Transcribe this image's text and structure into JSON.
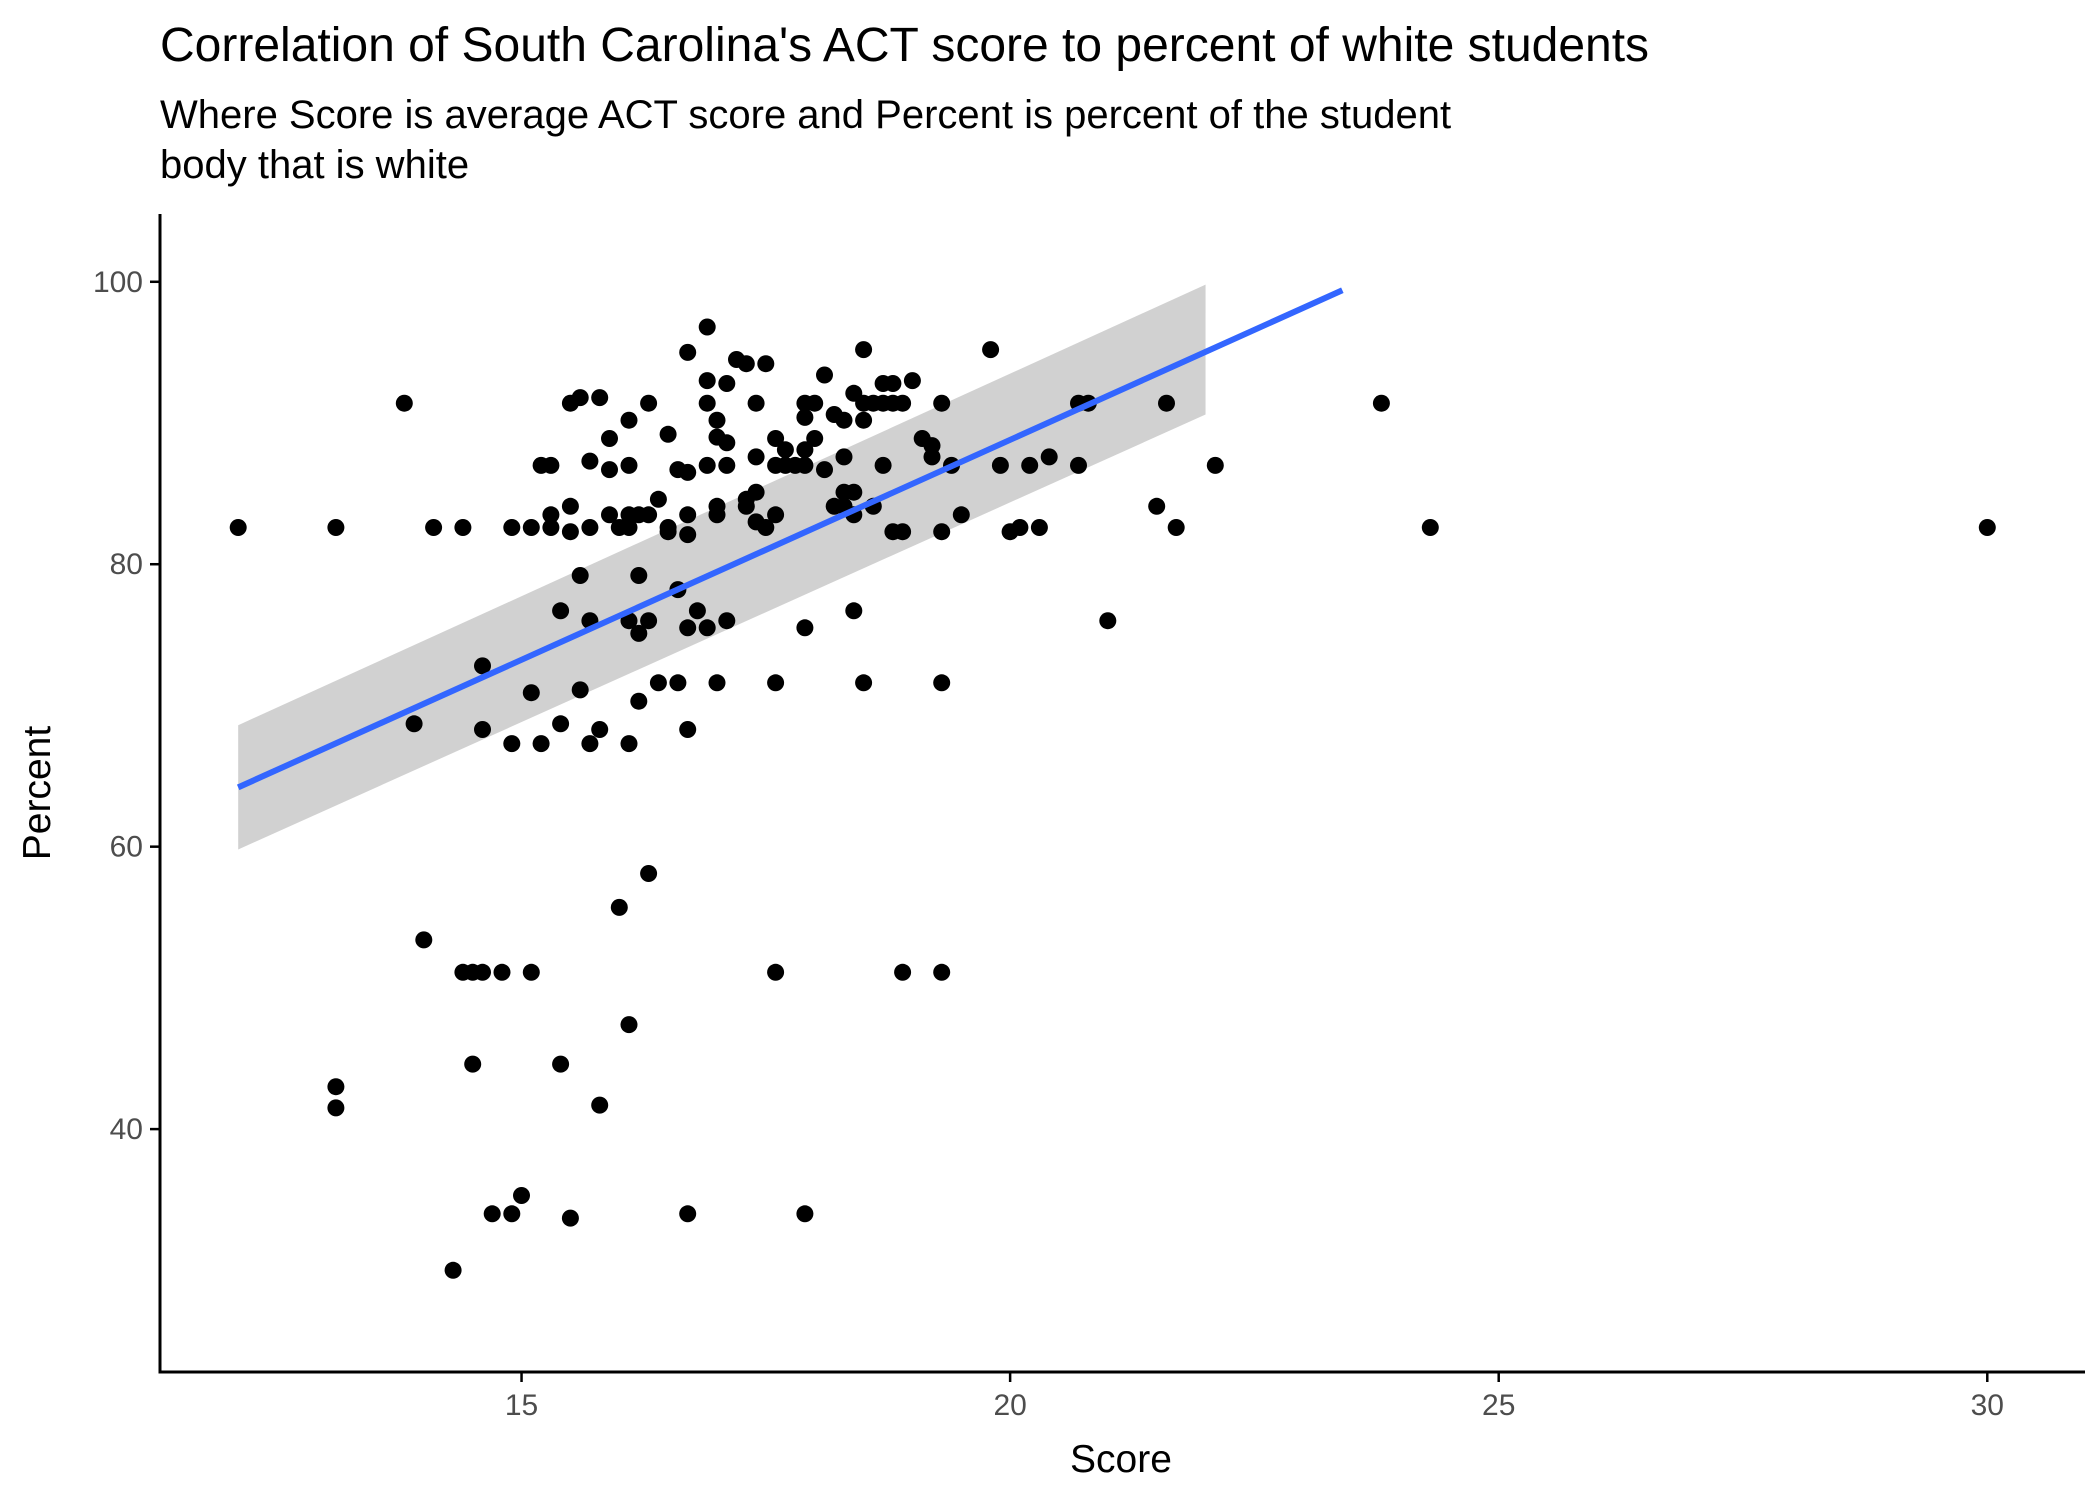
{
  "chart_data": {
    "type": "scatter",
    "title": "Correlation of South Carolina's ACT score to percent of white students",
    "subtitle": [
      "Where Score is average ACT score and Percent is percent of the student",
      "body that is white"
    ],
    "xlabel": "Score",
    "ylabel": "Percent",
    "xlim": [
      11.3,
      31.0
    ],
    "ylim": [
      22.8,
      104.8
    ],
    "x_ticks": [
      15,
      20,
      25,
      30
    ],
    "y_ticks": [
      40,
      60,
      80,
      100
    ],
    "x_tick_labels": [
      "15",
      "20",
      "25",
      "30"
    ],
    "y_tick_labels": [
      "40",
      "60",
      "80",
      "100"
    ],
    "grid": false,
    "legend": "none",
    "points": [
      [
        12.1,
        82.6
      ],
      [
        13.1,
        82.6
      ],
      [
        13.1,
        43.0
      ],
      [
        13.1,
        41.5
      ],
      [
        13.8,
        91.4
      ],
      [
        13.9,
        68.7
      ],
      [
        14.0,
        53.4
      ],
      [
        14.1,
        82.6
      ],
      [
        14.3,
        30.0
      ],
      [
        14.4,
        82.6
      ],
      [
        14.4,
        51.1
      ],
      [
        14.5,
        51.1
      ],
      [
        14.5,
        44.6
      ],
      [
        14.6,
        51.1
      ],
      [
        14.6,
        72.8
      ],
      [
        14.6,
        68.3
      ],
      [
        14.7,
        34.0
      ],
      [
        14.8,
        51.1
      ],
      [
        14.9,
        82.6
      ],
      [
        14.9,
        67.3
      ],
      [
        14.9,
        34.0
      ],
      [
        15.0,
        35.3
      ],
      [
        15.1,
        82.6
      ],
      [
        15.1,
        70.9
      ],
      [
        15.1,
        51.1
      ],
      [
        15.2,
        87.0
      ],
      [
        15.2,
        67.3
      ],
      [
        15.3,
        87.0
      ],
      [
        15.3,
        83.5
      ],
      [
        15.3,
        82.6
      ],
      [
        15.4,
        76.7
      ],
      [
        15.4,
        68.7
      ],
      [
        15.4,
        44.6
      ],
      [
        15.5,
        91.4
      ],
      [
        15.5,
        84.1
      ],
      [
        15.5,
        82.3
      ],
      [
        15.5,
        33.7
      ],
      [
        15.6,
        91.8
      ],
      [
        15.6,
        79.2
      ],
      [
        15.6,
        71.1
      ],
      [
        15.7,
        87.3
      ],
      [
        15.7,
        82.6
      ],
      [
        15.7,
        76.0
      ],
      [
        15.7,
        67.3
      ],
      [
        15.8,
        91.8
      ],
      [
        15.8,
        68.3
      ],
      [
        15.8,
        41.7
      ],
      [
        15.9,
        88.9
      ],
      [
        15.9,
        86.7
      ],
      [
        15.9,
        83.5
      ],
      [
        16.0,
        82.6
      ],
      [
        16.0,
        55.7
      ],
      [
        16.1,
        90.2
      ],
      [
        16.1,
        87.0
      ],
      [
        16.1,
        83.5
      ],
      [
        16.1,
        82.6
      ],
      [
        16.1,
        76.0
      ],
      [
        16.1,
        67.3
      ],
      [
        16.1,
        47.4
      ],
      [
        16.2,
        83.5
      ],
      [
        16.2,
        79.2
      ],
      [
        16.2,
        75.1
      ],
      [
        16.2,
        70.3
      ],
      [
        16.3,
        91.4
      ],
      [
        16.3,
        83.5
      ],
      [
        16.3,
        76.0
      ],
      [
        16.3,
        58.1
      ],
      [
        16.4,
        84.6
      ],
      [
        16.4,
        71.6
      ],
      [
        16.5,
        89.2
      ],
      [
        16.5,
        82.6
      ],
      [
        16.5,
        82.3
      ],
      [
        16.6,
        86.7
      ],
      [
        16.6,
        78.2
      ],
      [
        16.6,
        71.6
      ],
      [
        16.7,
        95.0
      ],
      [
        16.7,
        86.5
      ],
      [
        16.7,
        83.5
      ],
      [
        16.7,
        82.1
      ],
      [
        16.7,
        75.5
      ],
      [
        16.7,
        68.3
      ],
      [
        16.7,
        34.0
      ],
      [
        16.8,
        76.7
      ],
      [
        16.9,
        96.8
      ],
      [
        16.9,
        93.0
      ],
      [
        16.9,
        91.4
      ],
      [
        16.9,
        87.0
      ],
      [
        16.9,
        75.5
      ],
      [
        17.0,
        90.2
      ],
      [
        17.0,
        89.0
      ],
      [
        17.0,
        84.1
      ],
      [
        17.0,
        83.5
      ],
      [
        17.0,
        71.6
      ],
      [
        17.1,
        92.8
      ],
      [
        17.1,
        88.6
      ],
      [
        17.1,
        87.0
      ],
      [
        17.1,
        76.0
      ],
      [
        17.2,
        94.5
      ],
      [
        17.3,
        94.2
      ],
      [
        17.3,
        84.6
      ],
      [
        17.3,
        84.1
      ],
      [
        17.4,
        91.4
      ],
      [
        17.4,
        87.6
      ],
      [
        17.4,
        85.1
      ],
      [
        17.4,
        83.0
      ],
      [
        17.5,
        94.2
      ],
      [
        17.5,
        82.6
      ],
      [
        17.6,
        88.9
      ],
      [
        17.6,
        87.0
      ],
      [
        17.6,
        83.5
      ],
      [
        17.6,
        71.6
      ],
      [
        17.6,
        51.1
      ],
      [
        17.7,
        88.1
      ],
      [
        17.7,
        87.0
      ],
      [
        17.8,
        87.0
      ],
      [
        17.9,
        91.4
      ],
      [
        17.9,
        90.4
      ],
      [
        17.9,
        88.1
      ],
      [
        17.9,
        87.0
      ],
      [
        17.9,
        75.5
      ],
      [
        17.9,
        34.0
      ],
      [
        18.0,
        91.4
      ],
      [
        18.0,
        88.9
      ],
      [
        18.1,
        93.4
      ],
      [
        18.1,
        86.7
      ],
      [
        18.2,
        90.6
      ],
      [
        18.2,
        84.1
      ],
      [
        18.3,
        90.2
      ],
      [
        18.3,
        87.6
      ],
      [
        18.3,
        84.1
      ],
      [
        18.3,
        85.1
      ],
      [
        18.4,
        92.1
      ],
      [
        18.4,
        85.1
      ],
      [
        18.4,
        83.5
      ],
      [
        18.4,
        76.7
      ],
      [
        18.5,
        95.2
      ],
      [
        18.5,
        91.4
      ],
      [
        18.5,
        90.2
      ],
      [
        18.5,
        71.6
      ],
      [
        18.6,
        91.4
      ],
      [
        18.6,
        84.1
      ],
      [
        18.7,
        92.8
      ],
      [
        18.7,
        91.4
      ],
      [
        18.7,
        87.0
      ],
      [
        18.8,
        92.8
      ],
      [
        18.8,
        91.4
      ],
      [
        18.8,
        82.3
      ],
      [
        18.9,
        91.4
      ],
      [
        18.9,
        82.3
      ],
      [
        18.9,
        51.1
      ],
      [
        19.0,
        93.0
      ],
      [
        19.1,
        88.9
      ],
      [
        19.2,
        88.4
      ],
      [
        19.2,
        87.6
      ],
      [
        19.3,
        91.4
      ],
      [
        19.3,
        82.3
      ],
      [
        19.3,
        71.6
      ],
      [
        19.3,
        51.1
      ],
      [
        19.4,
        87.0
      ],
      [
        19.5,
        83.5
      ],
      [
        19.8,
        95.2
      ],
      [
        19.9,
        87.0
      ],
      [
        20.0,
        82.3
      ],
      [
        20.1,
        82.6
      ],
      [
        20.2,
        87.0
      ],
      [
        20.3,
        82.6
      ],
      [
        20.4,
        87.6
      ],
      [
        20.7,
        91.4
      ],
      [
        20.7,
        87.0
      ],
      [
        20.8,
        91.4
      ],
      [
        21.0,
        76.0
      ],
      [
        21.5,
        84.1
      ],
      [
        21.6,
        91.4
      ],
      [
        21.7,
        82.6
      ],
      [
        22.1,
        87.0
      ],
      [
        23.8,
        91.4
      ],
      [
        24.3,
        82.6
      ],
      [
        30.0,
        82.6
      ]
    ],
    "fit_line": {
      "x": [
        12.1,
        23.4
      ],
      "y": [
        64.2,
        99.4
      ]
    },
    "confidence_band": {
      "x": [
        12.1,
        22.0
      ],
      "upper": [
        68.6,
        99.8
      ],
      "lower": [
        59.8,
        90.6
      ]
    },
    "colors": {
      "points": "#000000",
      "fit_line": "#3366FF",
      "band": "#cccccc",
      "axis": "#000000",
      "tick_label": "#4d4d4d"
    }
  }
}
